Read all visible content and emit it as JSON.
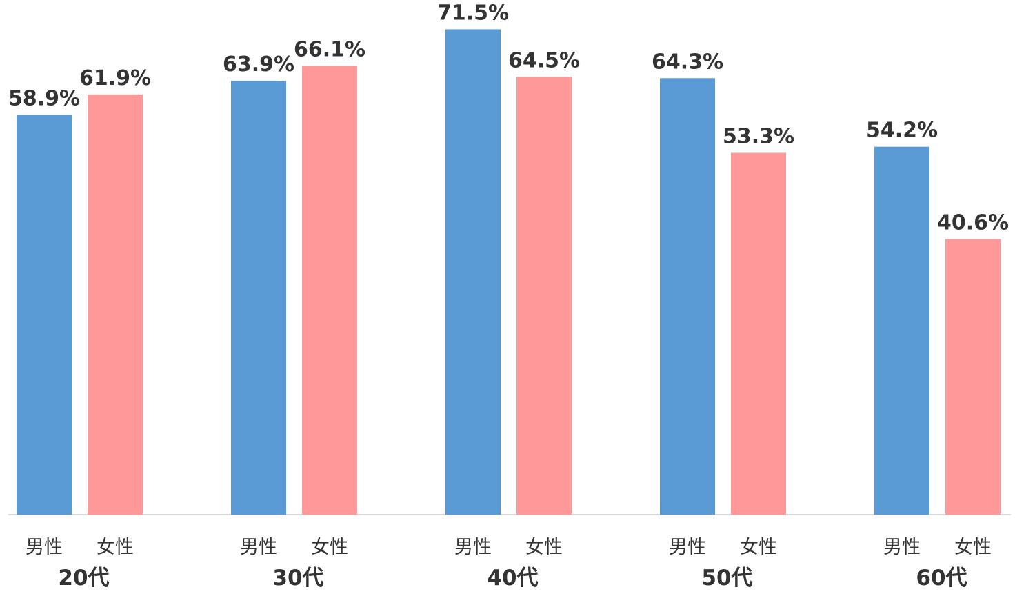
{
  "chart_data": {
    "type": "bar",
    "title": "",
    "xlabel": "",
    "ylabel": "",
    "ylim": [
      0,
      72
    ],
    "grid": false,
    "legend": "none",
    "unit": "%",
    "categories": [
      "20代",
      "30代",
      "40代",
      "50代",
      "60代"
    ],
    "series": [
      {
        "name": "男性",
        "color": "#5b9bd5",
        "values": [
          58.9,
          63.9,
          71.5,
          64.3,
          54.2
        ],
        "labels": [
          "58.9%",
          "63.9%",
          "71.5%",
          "64.3%",
          "54.2%"
        ]
      },
      {
        "name": "女性",
        "color": "#ff9999",
        "values": [
          61.9,
          66.1,
          64.5,
          53.3,
          40.6
        ],
        "labels": [
          "61.9%",
          "66.1%",
          "64.5%",
          "53.3%",
          "40.6%"
        ]
      }
    ]
  }
}
